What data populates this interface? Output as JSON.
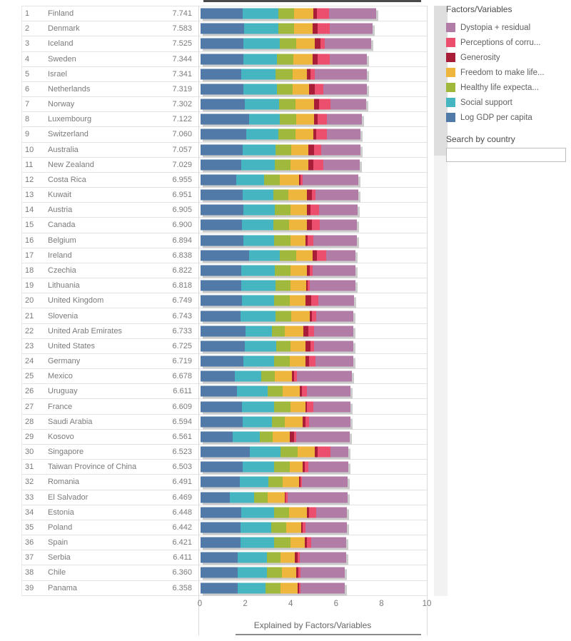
{
  "legend": {
    "title": "Factors/Variables",
    "items": [
      {
        "label": "Dystopia + residual",
        "color": "#b17ca6"
      },
      {
        "label": "Perceptions of corru...",
        "color": "#ec4e6e"
      },
      {
        "label": "Generosity",
        "color": "#a81e38"
      },
      {
        "label": "Freedom to make life...",
        "color": "#efb63d"
      },
      {
        "label": "Healthy life expecta...",
        "color": "#a0b83b"
      },
      {
        "label": "Social support",
        "color": "#45b6c1"
      },
      {
        "label": "Log GDP per capita",
        "color": "#517aa8"
      }
    ],
    "search_label": "Search by country",
    "search_value": ""
  },
  "chart_data": {
    "type": "bar",
    "orientation": "horizontal",
    "stacked": true,
    "xlabel": "Explained by Factors/Variables",
    "xlim": [
      0,
      10
    ],
    "x_ticks": [
      "0",
      "2",
      "4",
      "6",
      "8",
      "10"
    ],
    "grid": false,
    "legend_position": "right",
    "segment_order": [
      "Log GDP per capita",
      "Social support",
      "Healthy life expectancy",
      "Freedom to make life choices",
      "Generosity",
      "Perceptions of corruption",
      "Dystopia + residual"
    ],
    "segment_colors": [
      "#517aa8",
      "#45b6c1",
      "#a0b83b",
      "#efb63d",
      "#a81e38",
      "#ec4e6e",
      "#b17ca6"
    ],
    "columns": [
      "rank",
      "country",
      "score",
      "segments"
    ],
    "rows": [
      [
        1,
        "Finland",
        "7.741",
        [
          1.844,
          1.572,
          0.695,
          0.859,
          0.142,
          0.546,
          2.082
        ]
      ],
      [
        2,
        "Denmark",
        "7.583",
        [
          1.908,
          1.52,
          0.699,
          0.823,
          0.204,
          0.548,
          1.881
        ]
      ],
      [
        3,
        "Iceland",
        "7.525",
        [
          1.881,
          1.617,
          0.718,
          0.819,
          0.258,
          0.182,
          2.05
        ]
      ],
      [
        4,
        "Sweden",
        "7.344",
        [
          1.878,
          1.501,
          0.724,
          0.838,
          0.221,
          0.524,
          1.658
        ]
      ],
      [
        5,
        "Israel",
        "7.341",
        [
          1.803,
          1.513,
          0.74,
          0.641,
          0.153,
          0.193,
          2.298
        ]
      ],
      [
        6,
        "Netherlands",
        "7.319",
        [
          1.901,
          1.462,
          0.706,
          0.725,
          0.247,
          0.372,
          1.906
        ]
      ],
      [
        7,
        "Norway",
        "7.302",
        [
          1.952,
          1.517,
          0.704,
          0.835,
          0.224,
          0.484,
          1.586
        ]
      ],
      [
        8,
        "Luxembourg",
        "7.122",
        [
          2.141,
          1.355,
          0.708,
          0.801,
          0.146,
          0.432,
          1.54
        ]
      ],
      [
        9,
        "Switzerland",
        "7.060",
        [
          2.024,
          1.413,
          0.746,
          0.772,
          0.147,
          0.475,
          1.483
        ]
      ],
      [
        10,
        "Australia",
        "7.057",
        [
          1.854,
          1.461,
          0.692,
          0.756,
          0.225,
          0.323,
          1.745
        ]
      ],
      [
        11,
        "New Zealand",
        "7.029",
        [
          1.782,
          1.487,
          0.688,
          0.785,
          0.22,
          0.446,
          1.62
        ]
      ],
      [
        12,
        "Costa Rica",
        "6.955",
        [
          1.557,
          1.257,
          0.669,
          0.843,
          0.079,
          0.093,
          2.458
        ]
      ],
      [
        13,
        "Kuwait",
        "6.951",
        [
          1.845,
          1.364,
          0.661,
          0.827,
          0.2,
          0.172,
          1.882
        ]
      ],
      [
        14,
        "Austria",
        "6.905",
        [
          1.882,
          1.388,
          0.708,
          0.707,
          0.168,
          0.371,
          1.681
        ]
      ],
      [
        15,
        "Canada",
        "6.900",
        [
          1.813,
          1.396,
          0.706,
          0.783,
          0.206,
          0.341,
          1.655
        ]
      ],
      [
        16,
        "Belgium",
        "6.894",
        [
          1.874,
          1.381,
          0.699,
          0.655,
          0.094,
          0.28,
          1.911
        ]
      ],
      [
        17,
        "Ireland",
        "6.838",
        [
          2.129,
          1.376,
          0.699,
          0.736,
          0.193,
          0.408,
          1.298
        ]
      ],
      [
        18,
        "Czechia",
        "6.822",
        [
          1.808,
          1.464,
          0.676,
          0.753,
          0.111,
          0.136,
          1.874
        ]
      ],
      [
        19,
        "Lithuania",
        "6.818",
        [
          1.789,
          1.527,
          0.632,
          0.712,
          0.043,
          0.107,
          2.008
        ]
      ],
      [
        20,
        "United Kingdom",
        "6.749",
        [
          1.826,
          1.426,
          0.683,
          0.693,
          0.236,
          0.34,
          1.545
        ]
      ],
      [
        21,
        "Slovenia",
        "6.743",
        [
          1.773,
          1.53,
          0.696,
          0.8,
          0.111,
          0.18,
          1.653
        ]
      ],
      [
        22,
        "United Arab Emirates",
        "6.733",
        [
          1.983,
          1.164,
          0.563,
          0.815,
          0.209,
          0.258,
          1.741
        ]
      ],
      [
        23,
        "United States",
        "6.725",
        [
          1.939,
          1.392,
          0.635,
          0.664,
          0.211,
          0.169,
          1.715
        ]
      ],
      [
        24,
        "Germany",
        "6.719",
        [
          1.885,
          1.367,
          0.684,
          0.68,
          0.157,
          0.305,
          1.641
        ]
      ],
      [
        25,
        "Mexico",
        "6.678",
        [
          1.513,
          1.145,
          0.611,
          0.751,
          0.106,
          0.133,
          2.419
        ]
      ],
      [
        26,
        "Uruguay",
        "6.611",
        [
          1.61,
          1.354,
          0.638,
          0.78,
          0.094,
          0.208,
          1.927
        ]
      ],
      [
        27,
        "France",
        "6.609",
        [
          1.833,
          1.391,
          0.728,
          0.656,
          0.084,
          0.276,
          1.641
        ]
      ],
      [
        28,
        "Saudi Arabia",
        "6.594",
        [
          1.87,
          1.279,
          0.571,
          0.791,
          0.098,
          0.161,
          1.824
        ]
      ],
      [
        29,
        "Kosovo",
        "6.561",
        [
          1.417,
          1.197,
          0.549,
          0.771,
          0.183,
          0.088,
          2.356
        ]
      ],
      [
        30,
        "Singapore",
        "6.523",
        [
          2.168,
          1.345,
          0.774,
          0.749,
          0.137,
          0.566,
          0.784
        ]
      ],
      [
        31,
        "Taiwan Province of China",
        "6.503",
        [
          1.868,
          1.358,
          0.69,
          0.577,
          0.093,
          0.166,
          1.751
        ]
      ],
      [
        32,
        "Romania",
        "6.491",
        [
          1.719,
          1.27,
          0.614,
          0.742,
          0.048,
          0.084,
          2.014
        ]
      ],
      [
        33,
        "El Salvador",
        "6.469",
        [
          1.29,
          1.056,
          0.596,
          0.757,
          0.058,
          0.093,
          2.619
        ]
      ],
      [
        34,
        "Estonia",
        "6.448",
        [
          1.795,
          1.455,
          0.654,
          0.772,
          0.092,
          0.318,
          1.362
        ]
      ],
      [
        35,
        "Poland",
        "6.442",
        [
          1.749,
          1.361,
          0.655,
          0.655,
          0.082,
          0.131,
          1.809
        ]
      ],
      [
        36,
        "Spain",
        "6.421",
        [
          1.767,
          1.462,
          0.732,
          0.632,
          0.094,
          0.173,
          1.561
        ]
      ],
      [
        37,
        "Serbia",
        "6.411",
        [
          1.626,
          1.297,
          0.612,
          0.603,
          0.127,
          0.107,
          2.039
        ]
      ],
      [
        38,
        "Chile",
        "6.360",
        [
          1.636,
          1.287,
          0.663,
          0.614,
          0.097,
          0.112,
          1.951
        ]
      ],
      [
        39,
        "Panama",
        "6.358",
        [
          1.636,
          1.221,
          0.652,
          0.753,
          0.064,
          0.079,
          1.953
        ]
      ]
    ]
  }
}
